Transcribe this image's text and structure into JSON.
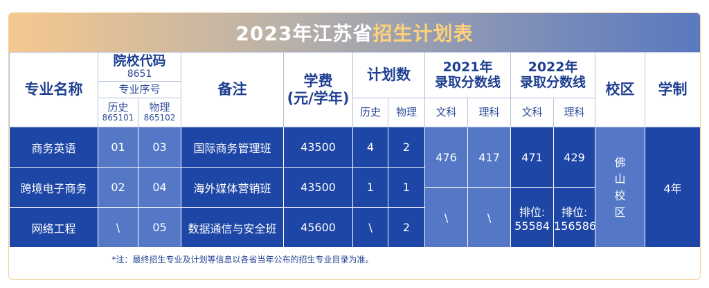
{
  "banner": {
    "title_prefix": "2023年江苏省",
    "title_highlight": "招生计划表"
  },
  "header": {
    "major_name": "专业名称",
    "school_code_label": "院校代码",
    "school_code_value": "8651",
    "major_seq_label": "专业序号",
    "history": "历史",
    "history_code": "865101",
    "physics": "物理",
    "physics_code": "865102",
    "remarks": "备注",
    "tuition_line1": "学费",
    "tuition_line2": "(元/学年)",
    "plan_count": "计划数",
    "plan_history": "历史",
    "plan_physics": "物理",
    "y2021_line1": "2021年",
    "y2021_line2": "录取分数线",
    "y2022_line1": "2022年",
    "y2022_line2": "录取分数线",
    "arts": "文科",
    "science": "理科",
    "campus": "校区",
    "duration": "学制"
  },
  "rows": [
    {
      "major": "商务英语",
      "seq_history": "01",
      "seq_physics": "03",
      "remark": "国际商务管理班",
      "tuition": "43500",
      "plan_history": "4",
      "plan_physics": "2"
    },
    {
      "major": "跨境电子商务",
      "seq_history": "02",
      "seq_physics": "04",
      "remark": "海外媒体营销班",
      "tuition": "43500",
      "plan_history": "1",
      "plan_physics": "1"
    },
    {
      "major": "网络工程",
      "seq_history": "\\",
      "seq_physics": "05",
      "remark": "数据通信与安全班",
      "tuition": "45600",
      "plan_history": "\\",
      "plan_physics": "2"
    }
  ],
  "scores": {
    "y2021_arts_top": "476",
    "y2021_science_top": "417",
    "y2021_arts_bottom": "\\",
    "y2021_science_bottom": "\\",
    "y2022_arts_score": "471",
    "y2022_science_score": "429",
    "y2022_arts_rank_label": "排位:",
    "y2022_arts_rank": "55584",
    "y2022_science_rank_label": "排位:",
    "y2022_science_rank": "156586"
  },
  "campus_chars": [
    "佛",
    "山",
    "校",
    "区"
  ],
  "duration_value": "4年",
  "footnote": "*注：最终招生专业及计划等信息以各省当年公布的招生专业目录为准。",
  "colors": {
    "dark_blue": "#1d46a6",
    "light_blue": "#5478c6",
    "header_text": "#1f3f91",
    "highlight": "#ffd27a"
  }
}
